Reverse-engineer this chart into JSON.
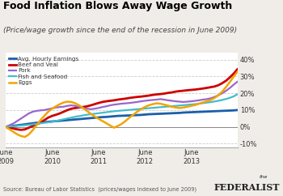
{
  "title": "Food Inflation Blows Away Wage Growth",
  "subtitle": "(Price/wage growth since the end of the recession in June 2009)",
  "source": "Source: Bureau of Labor Statistics  (prices/wages indexed to June 2009)",
  "ylim": [
    -0.12,
    0.44
  ],
  "yticks": [
    -0.1,
    0.0,
    0.1,
    0.2,
    0.3,
    0.4
  ],
  "ytick_labels": [
    "-10%",
    "0%",
    "10%",
    "20%",
    "30%",
    "40%"
  ],
  "series": {
    "Avg. Hourly Earnings": {
      "color": "#1a5faa",
      "linewidth": 2.0,
      "data": [
        0.0,
        0.003,
        0.006,
        0.009,
        0.012,
        0.015,
        0.018,
        0.021,
        0.024,
        0.026,
        0.028,
        0.03,
        0.032,
        0.034,
        0.036,
        0.038,
        0.04,
        0.042,
        0.044,
        0.046,
        0.048,
        0.05,
        0.052,
        0.054,
        0.056,
        0.058,
        0.059,
        0.061,
        0.063,
        0.065,
        0.066,
        0.067,
        0.068,
        0.069,
        0.07,
        0.071,
        0.073,
        0.075,
        0.076,
        0.077,
        0.078,
        0.079,
        0.08,
        0.081,
        0.082,
        0.083,
        0.085,
        0.086,
        0.087,
        0.088,
        0.089,
        0.09,
        0.091,
        0.092,
        0.093,
        0.094,
        0.095,
        0.096,
        0.097,
        0.098,
        0.1
      ]
    },
    "Beef and Veal": {
      "color": "#cc0000",
      "linewidth": 2.0,
      "data": [
        0.0,
        -0.005,
        -0.01,
        -0.015,
        -0.018,
        -0.015,
        -0.005,
        0.005,
        0.015,
        0.025,
        0.04,
        0.055,
        0.065,
        0.072,
        0.08,
        0.09,
        0.1,
        0.108,
        0.112,
        0.115,
        0.118,
        0.122,
        0.128,
        0.135,
        0.142,
        0.148,
        0.152,
        0.155,
        0.158,
        0.162,
        0.165,
        0.168,
        0.172,
        0.175,
        0.178,
        0.18,
        0.183,
        0.186,
        0.19,
        0.193,
        0.195,
        0.198,
        0.202,
        0.205,
        0.21,
        0.213,
        0.215,
        0.218,
        0.22,
        0.222,
        0.225,
        0.228,
        0.232,
        0.236,
        0.24,
        0.248,
        0.26,
        0.275,
        0.295,
        0.318,
        0.345
      ]
    },
    "Pork": {
      "color": "#9966cc",
      "linewidth": 1.6,
      "data": [
        0.0,
        0.01,
        0.02,
        0.035,
        0.05,
        0.065,
        0.08,
        0.09,
        0.095,
        0.098,
        0.1,
        0.105,
        0.11,
        0.115,
        0.118,
        0.12,
        0.125,
        0.128,
        0.125,
        0.118,
        0.112,
        0.108,
        0.105,
        0.108,
        0.112,
        0.118,
        0.122,
        0.128,
        0.132,
        0.135,
        0.138,
        0.14,
        0.142,
        0.145,
        0.148,
        0.152,
        0.155,
        0.158,
        0.16,
        0.162,
        0.165,
        0.162,
        0.158,
        0.155,
        0.152,
        0.15,
        0.148,
        0.15,
        0.152,
        0.155,
        0.158,
        0.162,
        0.165,
        0.17,
        0.178,
        0.188,
        0.2,
        0.215,
        0.232,
        0.252,
        0.27
      ]
    },
    "Fish and Seafood": {
      "color": "#44bbcc",
      "linewidth": 1.6,
      "data": [
        0.0,
        0.002,
        0.004,
        0.006,
        0.008,
        0.01,
        0.012,
        0.015,
        0.018,
        0.021,
        0.024,
        0.027,
        0.03,
        0.035,
        0.04,
        0.045,
        0.05,
        0.055,
        0.06,
        0.064,
        0.068,
        0.072,
        0.075,
        0.078,
        0.081,
        0.084,
        0.087,
        0.09,
        0.093,
        0.095,
        0.097,
        0.099,
        0.101,
        0.103,
        0.105,
        0.107,
        0.109,
        0.111,
        0.113,
        0.115,
        0.117,
        0.119,
        0.121,
        0.123,
        0.125,
        0.127,
        0.129,
        0.131,
        0.133,
        0.135,
        0.138,
        0.141,
        0.144,
        0.147,
        0.151,
        0.155,
        0.16,
        0.166,
        0.173,
        0.182,
        0.195
      ]
    },
    "Eggs": {
      "color": "#f0a500",
      "linewidth": 1.8,
      "data": [
        0.0,
        -0.015,
        -0.03,
        -0.045,
        -0.055,
        -0.06,
        -0.045,
        -0.02,
        0.01,
        0.04,
        0.065,
        0.09,
        0.108,
        0.122,
        0.135,
        0.145,
        0.15,
        0.148,
        0.14,
        0.128,
        0.112,
        0.095,
        0.078,
        0.062,
        0.048,
        0.035,
        0.022,
        0.008,
        -0.005,
        0.005,
        0.018,
        0.035,
        0.055,
        0.072,
        0.09,
        0.105,
        0.118,
        0.128,
        0.135,
        0.14,
        0.138,
        0.132,
        0.126,
        0.12,
        0.115,
        0.112,
        0.115,
        0.12,
        0.125,
        0.13,
        0.138,
        0.145,
        0.152,
        0.16,
        0.172,
        0.188,
        0.21,
        0.238,
        0.268,
        0.3,
        0.33
      ]
    }
  },
  "xtick_positions": [
    0,
    12,
    24,
    36,
    48,
    60
  ],
  "xtick_labels": [
    "June\n2009",
    "June\n2010",
    "June\n2011",
    "June\n2012",
    "June\n2013",
    ""
  ],
  "bg_color": "#f0ede8",
  "plot_bg": "#ffffff",
  "title_color": "#000000",
  "grid_color": "#cccccc",
  "legend_labels": [
    "Avg. Hourly Earnings",
    "Beef and Veal",
    "Pork",
    "Fish and Seafood",
    "Eggs"
  ]
}
